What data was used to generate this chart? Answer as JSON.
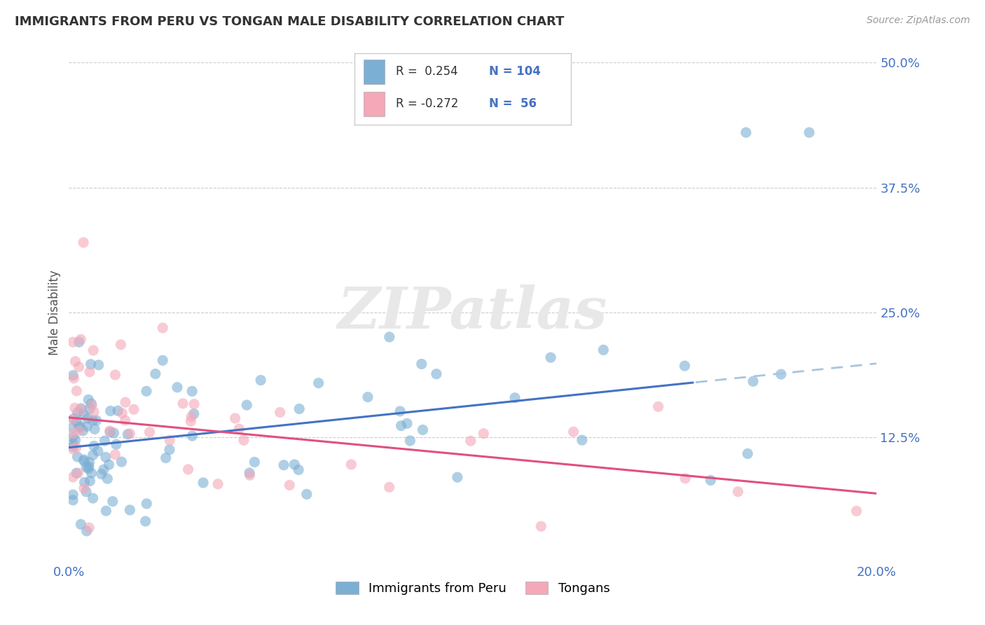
{
  "title": "IMMIGRANTS FROM PERU VS TONGAN MALE DISABILITY CORRELATION CHART",
  "source_text": "Source: ZipAtlas.com",
  "ylabel": "Male Disability",
  "legend_labels": [
    "Immigrants from Peru",
    "Tongans"
  ],
  "blue_R": 0.254,
  "blue_N": 104,
  "pink_R": -0.272,
  "pink_N": 56,
  "xlim": [
    0.0,
    0.2
  ],
  "ylim": [
    0.0,
    0.5
  ],
  "yticks": [
    0.0,
    0.125,
    0.25,
    0.375,
    0.5
  ],
  "ytick_labels": [
    "",
    "12.5%",
    "25.0%",
    "37.5%",
    "50.0%"
  ],
  "xtick_vals": [
    0.0,
    0.05,
    0.1,
    0.15,
    0.2
  ],
  "xtick_labels": [
    "0.0%",
    "",
    "",
    "",
    "20.0%"
  ],
  "blue_color": "#7bafd4",
  "pink_color": "#f4a8b8",
  "blue_line_color": "#4472c4",
  "pink_line_color": "#e05080",
  "blue_dash_color": "#aac4e0",
  "grid_color": "#cccccc",
  "background_color": "#ffffff",
  "watermark_text": "ZIPatlas",
  "tick_label_color": "#4472c4",
  "title_color": "#333333",
  "source_color": "#999999",
  "ylabel_color": "#555555"
}
